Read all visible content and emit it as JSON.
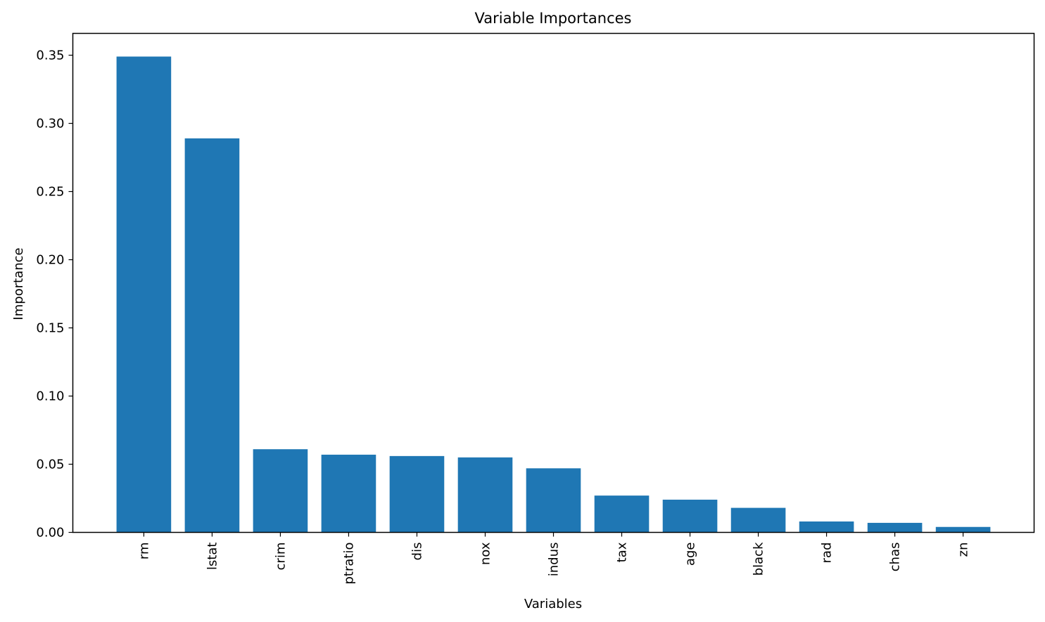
{
  "chart_data": {
    "type": "bar",
    "title": "Variable Importances",
    "xlabel": "Variables",
    "ylabel": "Importance",
    "categories": [
      "rm",
      "lstat",
      "crim",
      "ptratio",
      "dis",
      "nox",
      "indus",
      "tax",
      "age",
      "black",
      "rad",
      "chas",
      "zn"
    ],
    "values": [
      0.349,
      0.289,
      0.061,
      0.057,
      0.056,
      0.055,
      0.047,
      0.027,
      0.024,
      0.018,
      0.008,
      0.007,
      0.004
    ],
    "ylim": [
      0,
      0.366
    ],
    "yticks": [
      0.0,
      0.05,
      0.1,
      0.15,
      0.2,
      0.25,
      0.3,
      0.35
    ],
    "ytick_labels": [
      "0.00",
      "0.05",
      "0.10",
      "0.15",
      "0.20",
      "0.25",
      "0.30",
      "0.35"
    ],
    "bar_color": "#1f77b4",
    "grid": false,
    "legend": "none",
    "xtick_rotation": "vertical"
  }
}
